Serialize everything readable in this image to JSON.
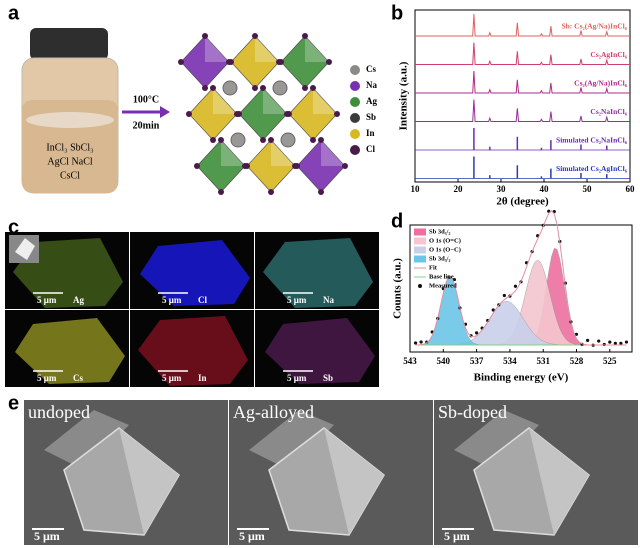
{
  "panel_a": {
    "label": "a",
    "vial_text": [
      "InCl₃ SbCl₃",
      "AgCl  NaCl",
      "CsCl"
    ],
    "conditions": [
      "100°C",
      "20min"
    ],
    "legend": [
      {
        "name": "Cs",
        "color": "#8c8a86"
      },
      {
        "name": "Na",
        "color": "#7a2fb0"
      },
      {
        "name": "Ag",
        "color": "#3f8f3a"
      },
      {
        "name": "Sb",
        "color": "#3a3a3a"
      },
      {
        "name": "In",
        "color": "#d8b820"
      },
      {
        "name": "Cl",
        "color": "#4a1a4a"
      }
    ]
  },
  "panel_b": {
    "label": "b",
    "y_label": "Intensity (a.u.)",
    "x_label": "2θ (degree)",
    "xlim": [
      10,
      60
    ],
    "xticks": [
      10,
      20,
      30,
      40,
      50,
      60
    ],
    "peaks": [
      23.7,
      27.4,
      33.8,
      39.4,
      41.6,
      48.6,
      54.6
    ],
    "peak_heights": [
      1,
      0.15,
      0.6,
      0.1,
      0.45,
      0.25,
      0.2
    ],
    "traces": [
      {
        "name": "Sb: Cs₂(Ag/Na)InCl₆",
        "color": "#e06060",
        "kind": "measured"
      },
      {
        "name": "Cs₂AgInCl₆",
        "color": "#d0406a",
        "kind": "measured"
      },
      {
        "name": "Cs₂(Ag/Na)InCl₆",
        "color": "#b02a8a",
        "kind": "measured"
      },
      {
        "name": "Cs₂NaInCl₆",
        "color": "#9a2aa0",
        "kind": "measured"
      },
      {
        "name": "Simulated Cs₂NaInCl₆",
        "color": "#6a2ab0",
        "kind": "simulated"
      },
      {
        "name": "Simulated Cs₂AgInCl₆",
        "color": "#2a3ab0",
        "kind": "simulated"
      }
    ]
  },
  "panel_c": {
    "label": "c",
    "maps": [
      {
        "element": "Ag",
        "scale": "5 μm",
        "color": "#3f5a1a"
      },
      {
        "element": "Cl",
        "scale": "5 μm",
        "color": "#1a1ad8"
      },
      {
        "element": "Na",
        "scale": "5 μm",
        "color": "#2a6a6a"
      },
      {
        "element": "Cs",
        "scale": "5 μm",
        "color": "#8a8a20"
      },
      {
        "element": "In",
        "scale": "5 μm",
        "color": "#7a1020"
      },
      {
        "element": "Sb",
        "scale": "5 μm",
        "color": "#4a1a4a"
      }
    ]
  },
  "panel_d": {
    "label": "d",
    "y_label": "Counts (a.u.)",
    "x_label": "Binding energy (eV)",
    "xlim": [
      543,
      523
    ],
    "xticks": [
      543,
      540,
      537,
      534,
      531,
      528,
      525
    ],
    "components": [
      {
        "name": "Sb 3d₅/₂",
        "center": 529.9,
        "height": 0.78,
        "width": 0.8,
        "color": "#ee6fa0"
      },
      {
        "name": "O 1s (O=C)",
        "center": 531.5,
        "height": 0.68,
        "width": 1.1,
        "color": "#f5c6cf"
      },
      {
        "name": "O 1s (O−C)",
        "center": 534.3,
        "height": 0.35,
        "width": 1.5,
        "color": "#c8d0ea"
      },
      {
        "name": "Sb 3d₃/₂",
        "center": 539.4,
        "height": 0.55,
        "width": 0.8,
        "color": "#6cc6e8"
      }
    ],
    "lines": [
      "Fit",
      "Base line",
      "Measured"
    ]
  },
  "panel_e": {
    "label": "e",
    "images": [
      {
        "caption": "undoped",
        "scale": "5 μm"
      },
      {
        "caption": "Ag-alloyed",
        "scale": "5 μm"
      },
      {
        "caption": "Sb-doped",
        "scale": "5 μm"
      }
    ]
  }
}
